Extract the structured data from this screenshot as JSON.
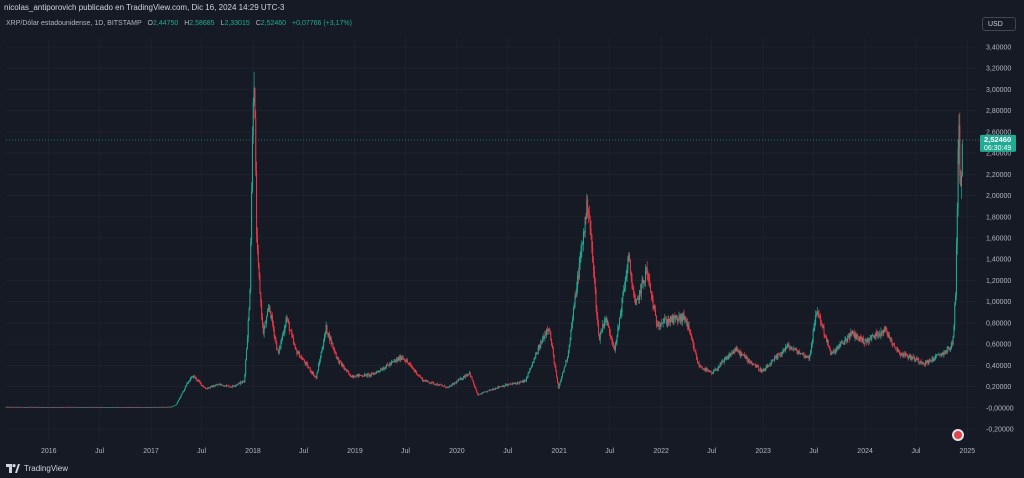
{
  "header": {
    "publish_text": "nicolas_antiporovich publicado en TradingView.com, Dic 16, 2024 14:29 UTC-3"
  },
  "legend": {
    "symbol": "XRP/Dólar estadounidense, 1D, BITSTAMP",
    "o_label": "O",
    "o_value": "2,44750",
    "h_label": "H",
    "h_value": "2,58685",
    "l_label": "L",
    "l_value": "2,33015",
    "c_label": "C",
    "c_value": "2,52460",
    "change": "+0,07766 (+3,17%)"
  },
  "toolbar": {
    "currency": "USD"
  },
  "price_tag": {
    "price": "2,52460",
    "countdown": "06:30:49"
  },
  "footer": {
    "brand": "TradingView"
  },
  "colors": {
    "up": "#22ab94",
    "down": "#f23645",
    "tag": "#22ab94",
    "bg": "#161a25",
    "grid": "#232632"
  },
  "chart_data": {
    "type": "candlestick",
    "x_ticks": [
      "2016",
      "Jul",
      "2017",
      "Jul",
      "2018",
      "Jul",
      "2019",
      "Jul",
      "2020",
      "Jul",
      "2021",
      "Jul",
      "2022",
      "Jul",
      "2023",
      "Jul",
      "2024",
      "Jul",
      "2025"
    ],
    "y_ticks": [
      "-0,20000",
      "-0,00000",
      "0,20000",
      "0,40000",
      "0,60000",
      "0,80000",
      "1,00000",
      "1,20000",
      "1,40000",
      "1,60000",
      "1,80000",
      "2,00000",
      "2,20000",
      "2,40000",
      "2,60000",
      "2,80000",
      "3,00000",
      "3,20000",
      "3,40000"
    ],
    "y_range": [
      -0.25,
      3.5
    ],
    "x_range": [
      "2015-08-01",
      "2025-02-01"
    ],
    "last_price": 2.5246,
    "series_path": [
      [
        "2015-08-01",
        0.007
      ],
      [
        "2016-06-01",
        0.006
      ],
      [
        "2017-01-01",
        0.006
      ],
      [
        "2017-03-15",
        0.008
      ],
      [
        "2017-04-01",
        0.03
      ],
      [
        "2017-05-15",
        0.25
      ],
      [
        "2017-06-01",
        0.3
      ],
      [
        "2017-07-15",
        0.18
      ],
      [
        "2017-09-01",
        0.22
      ],
      [
        "2017-10-15",
        0.2
      ],
      [
        "2017-12-01",
        0.25
      ],
      [
        "2017-12-20",
        1.0
      ],
      [
        "2018-01-04",
        3.3
      ],
      [
        "2018-01-15",
        1.5
      ],
      [
        "2018-02-06",
        0.7
      ],
      [
        "2018-03-01",
        0.95
      ],
      [
        "2018-04-01",
        0.5
      ],
      [
        "2018-05-01",
        0.85
      ],
      [
        "2018-06-01",
        0.55
      ],
      [
        "2018-08-15",
        0.28
      ],
      [
        "2018-09-20",
        0.75
      ],
      [
        "2018-11-01",
        0.45
      ],
      [
        "2018-12-15",
        0.3
      ],
      [
        "2019-03-01",
        0.31
      ],
      [
        "2019-06-20",
        0.48
      ],
      [
        "2019-09-01",
        0.26
      ],
      [
        "2019-12-01",
        0.19
      ],
      [
        "2020-02-15",
        0.33
      ],
      [
        "2020-03-15",
        0.12
      ],
      [
        "2020-06-01",
        0.2
      ],
      [
        "2020-09-01",
        0.25
      ],
      [
        "2020-11-24",
        0.78
      ],
      [
        "2020-12-29",
        0.18
      ],
      [
        "2021-02-01",
        0.5
      ],
      [
        "2021-04-14",
        1.96
      ],
      [
        "2021-05-23",
        0.65
      ],
      [
        "2021-06-15",
        0.85
      ],
      [
        "2021-07-20",
        0.55
      ],
      [
        "2021-09-06",
        1.41
      ],
      [
        "2021-10-01",
        0.95
      ],
      [
        "2021-11-10",
        1.3
      ],
      [
        "2021-12-15",
        0.8
      ],
      [
        "2022-03-28",
        0.85
      ],
      [
        "2022-05-15",
        0.4
      ],
      [
        "2022-07-01",
        0.32
      ],
      [
        "2022-09-23",
        0.55
      ],
      [
        "2022-12-31",
        0.34
      ],
      [
        "2023-03-29",
        0.58
      ],
      [
        "2023-06-15",
        0.47
      ],
      [
        "2023-07-13",
        0.93
      ],
      [
        "2023-09-01",
        0.5
      ],
      [
        "2023-11-15",
        0.7
      ],
      [
        "2024-01-01",
        0.62
      ],
      [
        "2024-03-11",
        0.74
      ],
      [
        "2024-05-01",
        0.52
      ],
      [
        "2024-08-05",
        0.42
      ],
      [
        "2024-10-15",
        0.53
      ],
      [
        "2024-11-10",
        0.6
      ],
      [
        "2024-11-20",
        1.1
      ],
      [
        "2024-12-03",
        2.9
      ],
      [
        "2024-12-06",
        1.95
      ],
      [
        "2024-12-10",
        2.2
      ],
      [
        "2024-12-16",
        2.5246
      ]
    ]
  }
}
